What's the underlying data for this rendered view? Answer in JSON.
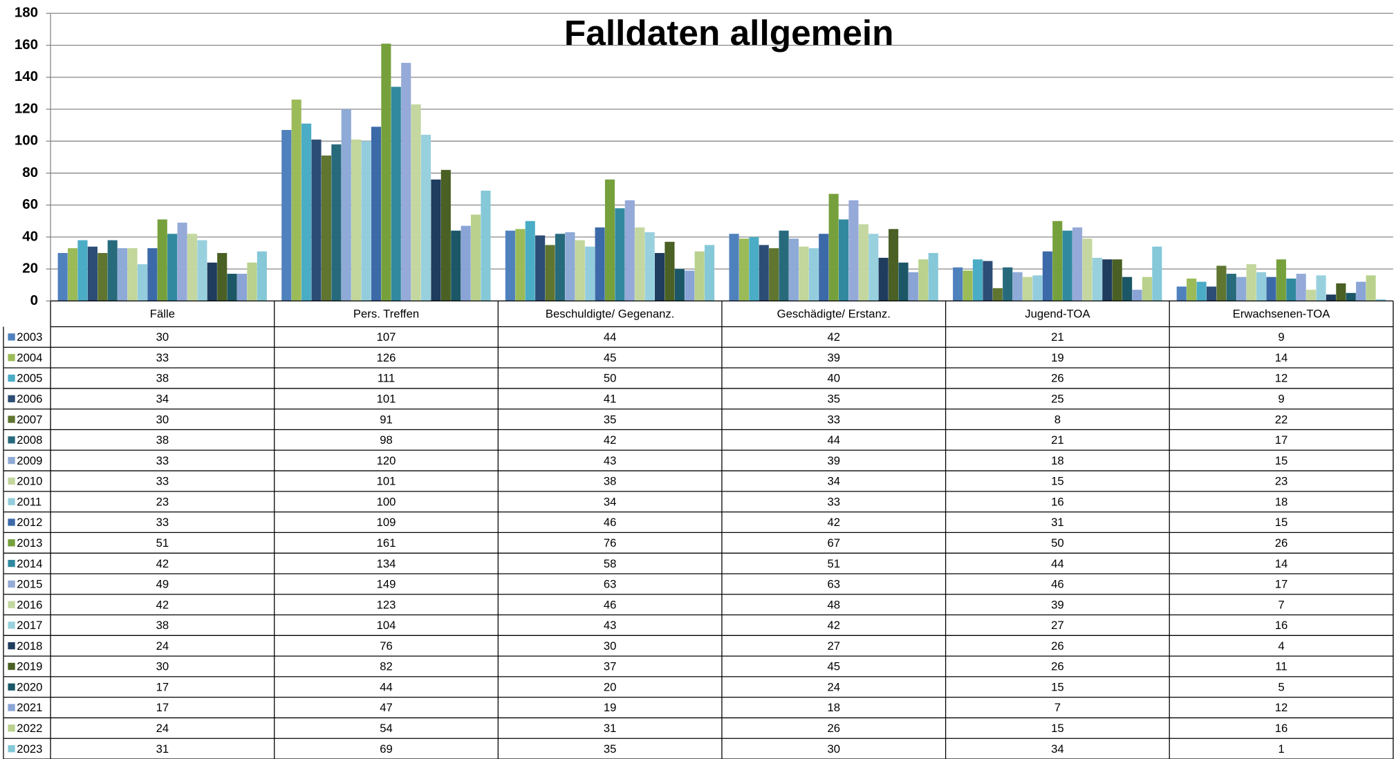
{
  "chart_data": {
    "type": "bar",
    "title": "Falldaten allgemein",
    "categories": [
      "Fälle",
      "Pers. Treffen",
      "Beschuldigte/ Gegenanz.",
      "Geschädigte/ Erstanz.",
      "Jugend-TOA",
      "Erwachsenen-TOA"
    ],
    "ylim": [
      0,
      180
    ],
    "yticks": [
      0,
      20,
      40,
      60,
      80,
      100,
      120,
      140,
      160,
      180
    ],
    "grid": true,
    "series": [
      {
        "name": "2003",
        "color": "#4f81bd",
        "values": [
          30,
          107,
          44,
          42,
          21,
          9
        ]
      },
      {
        "name": "2004",
        "color": "#9bbb59",
        "values": [
          33,
          126,
          45,
          39,
          19,
          14
        ]
      },
      {
        "name": "2005",
        "color": "#4bacc6",
        "values": [
          38,
          111,
          50,
          40,
          26,
          12
        ]
      },
      {
        "name": "2006",
        "color": "#2c4d75",
        "values": [
          34,
          101,
          41,
          35,
          25,
          9
        ]
      },
      {
        "name": "2007",
        "color": "#5f7530",
        "values": [
          30,
          91,
          35,
          33,
          8,
          22
        ]
      },
      {
        "name": "2008",
        "color": "#276a7c",
        "values": [
          38,
          98,
          42,
          44,
          21,
          17
        ]
      },
      {
        "name": "2009",
        "color": "#8eaad6",
        "values": [
          33,
          120,
          43,
          39,
          18,
          15
        ]
      },
      {
        "name": "2010",
        "color": "#c3d69b",
        "values": [
          33,
          101,
          38,
          34,
          15,
          23
        ]
      },
      {
        "name": "2011",
        "color": "#93cddd",
        "values": [
          23,
          100,
          34,
          33,
          16,
          18
        ]
      },
      {
        "name": "2012",
        "color": "#3c6aa8",
        "values": [
          33,
          109,
          46,
          42,
          31,
          15
        ]
      },
      {
        "name": "2013",
        "color": "#76a03c",
        "values": [
          51,
          161,
          76,
          67,
          50,
          26
        ]
      },
      {
        "name": "2014",
        "color": "#31899f",
        "values": [
          42,
          134,
          58,
          51,
          44,
          14
        ]
      },
      {
        "name": "2015",
        "color": "#95aad8",
        "values": [
          49,
          149,
          63,
          63,
          46,
          17
        ]
      },
      {
        "name": "2016",
        "color": "#c4d7a0",
        "values": [
          42,
          123,
          46,
          48,
          39,
          7
        ]
      },
      {
        "name": "2017",
        "color": "#98d0de",
        "values": [
          38,
          104,
          43,
          42,
          27,
          16
        ]
      },
      {
        "name": "2018",
        "color": "#1f3c5e",
        "values": [
          24,
          76,
          30,
          27,
          26,
          4
        ]
      },
      {
        "name": "2019",
        "color": "#4a6024",
        "values": [
          30,
          82,
          37,
          45,
          26,
          11
        ]
      },
      {
        "name": "2020",
        "color": "#1b5766",
        "values": [
          17,
          44,
          20,
          24,
          15,
          5
        ]
      },
      {
        "name": "2021",
        "color": "#8aa4d6",
        "values": [
          17,
          47,
          19,
          18,
          7,
          12
        ]
      },
      {
        "name": "2022",
        "color": "#b9d18c",
        "values": [
          24,
          54,
          31,
          26,
          15,
          16
        ]
      },
      {
        "name": "2023",
        "color": "#85c8d8",
        "values": [
          31,
          69,
          35,
          30,
          34,
          1
        ]
      }
    ]
  }
}
